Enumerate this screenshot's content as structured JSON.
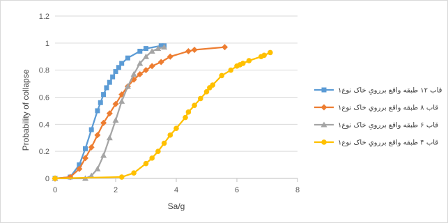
{
  "chart_data": {
    "type": "line",
    "xlabel": "Sa/g",
    "ylabel": "Probability of collapse",
    "xlim": [
      0,
      8
    ],
    "ylim": [
      0,
      1.2
    ],
    "x_ticks": [
      "0",
      "2",
      "4",
      "6",
      "8"
    ],
    "y_ticks": [
      "0",
      "0.2",
      "0.4",
      "0.6",
      "0.8",
      "1",
      "1.2"
    ],
    "grid": "horizontal",
    "legend_position": "right",
    "series": [
      {
        "name": "قاب ۱۲ طبقه واقع بررویِ خاک نوع۱",
        "color": "#5b9bd5",
        "marker": "square",
        "points": [
          [
            0,
            0
          ],
          [
            0.5,
            0.01
          ],
          [
            0.8,
            0.1
          ],
          [
            1.0,
            0.22
          ],
          [
            1.2,
            0.36
          ],
          [
            1.4,
            0.5
          ],
          [
            1.5,
            0.56
          ],
          [
            1.6,
            0.62
          ],
          [
            1.7,
            0.67
          ],
          [
            1.8,
            0.71
          ],
          [
            1.9,
            0.75
          ],
          [
            2.0,
            0.79
          ],
          [
            2.1,
            0.82
          ],
          [
            2.2,
            0.85
          ],
          [
            2.4,
            0.89
          ],
          [
            2.8,
            0.94
          ],
          [
            3.0,
            0.96
          ],
          [
            3.5,
            0.98
          ],
          [
            3.6,
            0.98
          ]
        ]
      },
      {
        "name": "قاب ۸ طبقه واقع بررویِ خاک نوع۱",
        "color": "#ed7d31",
        "marker": "diamond",
        "points": [
          [
            0,
            0
          ],
          [
            0.5,
            0.01
          ],
          [
            0.8,
            0.07
          ],
          [
            1.0,
            0.15
          ],
          [
            1.2,
            0.23
          ],
          [
            1.4,
            0.32
          ],
          [
            1.6,
            0.41
          ],
          [
            1.8,
            0.48
          ],
          [
            2.0,
            0.55
          ],
          [
            2.2,
            0.62
          ],
          [
            2.4,
            0.68
          ],
          [
            2.6,
            0.73
          ],
          [
            2.8,
            0.77
          ],
          [
            3.0,
            0.8
          ],
          [
            3.2,
            0.83
          ],
          [
            3.5,
            0.86
          ],
          [
            3.8,
            0.9
          ],
          [
            4.4,
            0.94
          ],
          [
            4.6,
            0.95
          ],
          [
            5.6,
            0.97
          ]
        ]
      },
      {
        "name": "قاب ۶ طبقه واقع بررویِ خاک نوع۱",
        "color": "#a5a5a5",
        "marker": "triangle",
        "points": [
          [
            0,
            0
          ],
          [
            1.0,
            0.0
          ],
          [
            1.2,
            0.02
          ],
          [
            1.4,
            0.07
          ],
          [
            1.6,
            0.17
          ],
          [
            1.8,
            0.3
          ],
          [
            2.0,
            0.43
          ],
          [
            2.2,
            0.57
          ],
          [
            2.4,
            0.68
          ],
          [
            2.6,
            0.77
          ],
          [
            2.8,
            0.85
          ],
          [
            3.0,
            0.9
          ],
          [
            3.2,
            0.94
          ],
          [
            3.4,
            0.96
          ],
          [
            3.6,
            0.97
          ]
        ]
      },
      {
        "name": "قاب ۴ طبقه واقع بررویِ خاک نوع۱",
        "color": "#ffc000",
        "marker": "circle",
        "points": [
          [
            0,
            0
          ],
          [
            2.2,
            0.01
          ],
          [
            2.6,
            0.04
          ],
          [
            3.0,
            0.11
          ],
          [
            3.2,
            0.15
          ],
          [
            3.4,
            0.2
          ],
          [
            3.6,
            0.26
          ],
          [
            3.8,
            0.32
          ],
          [
            4.0,
            0.37
          ],
          [
            4.3,
            0.45
          ],
          [
            4.4,
            0.49
          ],
          [
            4.6,
            0.54
          ],
          [
            4.8,
            0.59
          ],
          [
            5.0,
            0.64
          ],
          [
            5.1,
            0.67
          ],
          [
            5.2,
            0.69
          ],
          [
            5.5,
            0.76
          ],
          [
            5.8,
            0.8
          ],
          [
            6.0,
            0.83
          ],
          [
            6.1,
            0.84
          ],
          [
            6.2,
            0.85
          ],
          [
            6.4,
            0.87
          ],
          [
            6.8,
            0.9
          ],
          [
            6.9,
            0.91
          ],
          [
            7.1,
            0.93
          ]
        ]
      }
    ]
  }
}
